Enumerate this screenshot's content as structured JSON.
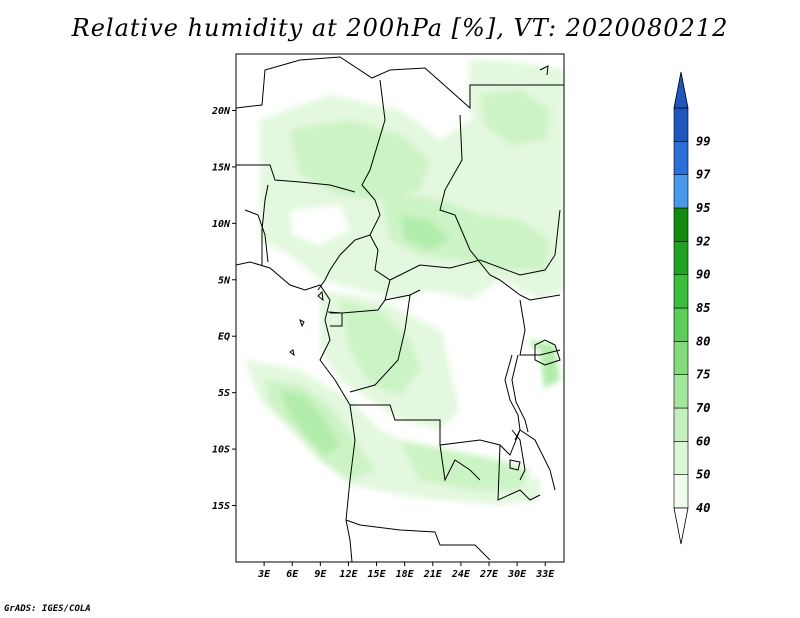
{
  "title": "Relative humidity at 200hPa [%], VT: 2020080212",
  "credit": "GrADS: IGES/COLA",
  "map": {
    "lon_range": [
      0,
      35
    ],
    "lat_range": [
      -20,
      25
    ],
    "lat_ticks": [
      {
        "value": 20,
        "label": "20N"
      },
      {
        "value": 15,
        "label": "15N"
      },
      {
        "value": 10,
        "label": "10N"
      },
      {
        "value": 5,
        "label": "5N"
      },
      {
        "value": 0,
        "label": "EQ"
      },
      {
        "value": -5,
        "label": "5S"
      },
      {
        "value": -10,
        "label": "10S"
      },
      {
        "value": -15,
        "label": "15S"
      }
    ],
    "lon_ticks": [
      {
        "value": 3,
        "label": "3E"
      },
      {
        "value": 6,
        "label": "6E"
      },
      {
        "value": 9,
        "label": "9E"
      },
      {
        "value": 12,
        "label": "12E"
      },
      {
        "value": 15,
        "label": "15E"
      },
      {
        "value": 18,
        "label": "18E"
      },
      {
        "value": 21,
        "label": "21E"
      },
      {
        "value": 24,
        "label": "24E"
      },
      {
        "value": 27,
        "label": "27E"
      },
      {
        "value": 30,
        "label": "30E"
      },
      {
        "value": 33,
        "label": "33E"
      }
    ]
  },
  "colorbar": {
    "levels": [
      {
        "label": "40",
        "color": "#f0fcee"
      },
      {
        "label": "50",
        "color": "#dcf7d6"
      },
      {
        "label": "60",
        "color": "#c4f0bd"
      },
      {
        "label": "70",
        "color": "#a4e79c"
      },
      {
        "label": "75",
        "color": "#82dc7c"
      },
      {
        "label": "80",
        "color": "#5ccf58"
      },
      {
        "label": "85",
        "color": "#3dbd3d"
      },
      {
        "label": "90",
        "color": "#22a222"
      },
      {
        "label": "92",
        "color": "#118c11"
      },
      {
        "label": "95",
        "color": "#4a98ea"
      },
      {
        "label": "97",
        "color": "#2a70d8"
      },
      {
        "label": "99",
        "color": "#1f57bf"
      }
    ],
    "top_arrow_color": "#1f57bf",
    "bottom_arrow_color": "#ffffff"
  }
}
